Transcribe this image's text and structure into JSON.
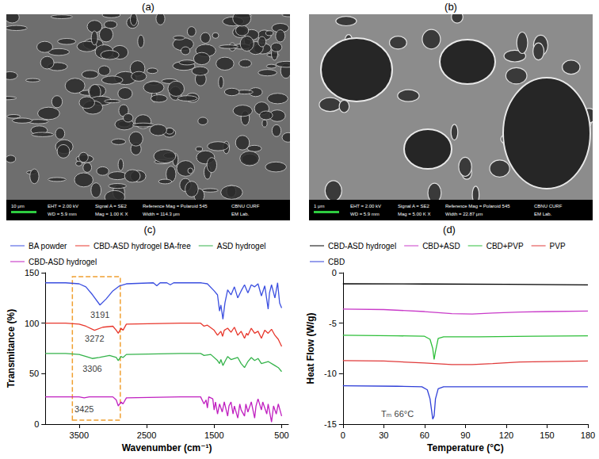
{
  "images": [
    {
      "panel_label": "(a)",
      "scale_bar": "10 μm",
      "info": [
        [
          "EHT = 2.00 kV",
          "WD = 5.9 mm"
        ],
        [
          "Signal A = SE2",
          "Mag = 1.00 K X"
        ],
        [
          "Reference Mag = Polaroid 545",
          "Width = 114.3 μm"
        ],
        [
          "CBNU CURF",
          "EM Lab."
        ]
      ]
    },
    {
      "panel_label": "(b)",
      "scale_bar": "1 μm",
      "info": [
        [
          "EHT = 2.00 kV",
          "WD = 5.9 mm"
        ],
        [
          "Signal A = SE2",
          "Mag = 5.00 K X"
        ],
        [
          "Reference Mag = Polaroid 545",
          "Width = 22.87 μm"
        ],
        [
          "CBNU CURF",
          "EM Lab."
        ]
      ]
    }
  ],
  "chart_data": [
    {
      "panel_label": "(c)",
      "type": "line",
      "x_label": "Wavenumber (cm⁻¹)",
      "y_label": "Transmitance (%)",
      "xlim": [
        4000,
        400
      ],
      "ylim": [
        0,
        150
      ],
      "xticks": [
        3500,
        2500,
        1500,
        500
      ],
      "yticks": [
        0,
        50,
        100,
        150
      ],
      "grid": false,
      "legend": "top",
      "series": [
        {
          "name": "BA powder",
          "color": "#3b4fe0",
          "x": [
            4000,
            3700,
            3500,
            3400,
            3300,
            3191,
            3100,
            3000,
            2900,
            2800,
            2400,
            2350,
            2300,
            2200,
            2150,
            2100,
            1800,
            1700,
            1600,
            1500,
            1450,
            1420,
            1400,
            1370,
            1340,
            1300,
            1250,
            1200,
            1150,
            1100,
            1050,
            1000,
            950,
            900,
            850,
            800,
            750,
            700,
            680,
            650,
            600,
            560,
            530,
            500
          ],
          "values": [
            140,
            140,
            139,
            136,
            128,
            118,
            124,
            132,
            137,
            139,
            140,
            137,
            140,
            140,
            138,
            140,
            140,
            140,
            139,
            132,
            128,
            112,
            118,
            104,
            120,
            133,
            128,
            136,
            125,
            132,
            138,
            130,
            138,
            136,
            139,
            127,
            137,
            114,
            130,
            138,
            125,
            140,
            120,
            115
          ]
        },
        {
          "name": "CBD-ASD hydrogel BA-free",
          "color": "#e8372c",
          "x": [
            4000,
            3700,
            3500,
            3400,
            3272,
            3150,
            3000,
            2950,
            2920,
            2880,
            2850,
            2800,
            2000,
            1700,
            1650,
            1600,
            1500,
            1450,
            1400,
            1375,
            1350,
            1300,
            1250,
            1200,
            1150,
            1100,
            1050,
            1020,
            1000,
            950,
            900,
            850,
            800,
            750,
            700,
            650,
            600,
            550,
            500
          ],
          "values": [
            100,
            100,
            99,
            97,
            93,
            96,
            97,
            93,
            90,
            95,
            93,
            99,
            100,
            100,
            97,
            98,
            93,
            88,
            92,
            87,
            93,
            95,
            91,
            96,
            88,
            92,
            85,
            90,
            88,
            95,
            90,
            92,
            85,
            93,
            90,
            94,
            88,
            84,
            77
          ]
        },
        {
          "name": "ASD hydrogel",
          "color": "#34b34a",
          "x": [
            4000,
            3700,
            3500,
            3400,
            3306,
            3200,
            3050,
            2950,
            2920,
            2880,
            2850,
            2800,
            2000,
            1700,
            1650,
            1550,
            1450,
            1420,
            1400,
            1370,
            1340,
            1300,
            1250,
            1150,
            1100,
            1050,
            1000,
            950,
            900,
            850,
            800,
            700,
            600,
            550,
            500
          ],
          "values": [
            70,
            70,
            69,
            67,
            65,
            66,
            68,
            66,
            63,
            67,
            66,
            69,
            70,
            70,
            68,
            69,
            63,
            60,
            64,
            58,
            62,
            67,
            64,
            66,
            60,
            56,
            62,
            66,
            63,
            65,
            60,
            62,
            58,
            56,
            52
          ]
        },
        {
          "name": "CBD-ASD hydrogel",
          "color": "#c020c0",
          "x": [
            4000,
            3600,
            3500,
            3425,
            3350,
            3000,
            2950,
            2920,
            2880,
            2850,
            2800,
            2000,
            1700,
            1650,
            1620,
            1600,
            1580,
            1520,
            1500,
            1480,
            1450,
            1420,
            1380,
            1350,
            1300,
            1280,
            1250,
            1220,
            1200,
            1150,
            1120,
            1100,
            1050,
            1030,
            1000,
            950,
            900,
            880,
            850,
            800,
            780,
            720,
            700,
            650,
            620,
            580,
            550,
            500
          ],
          "values": [
            27,
            27,
            27,
            26,
            27,
            27,
            24,
            18,
            22,
            20,
            26,
            27,
            27,
            20,
            24,
            16,
            27,
            25,
            14,
            22,
            10,
            20,
            12,
            22,
            8,
            18,
            22,
            10,
            18,
            6,
            20,
            14,
            8,
            20,
            12,
            22,
            6,
            18,
            25,
            14,
            22,
            10,
            20,
            2,
            18,
            10,
            20,
            8
          ]
        }
      ],
      "annotations": [
        {
          "text": "3191",
          "x": 3191,
          "y": 108
        },
        {
          "text": "3272",
          "x": 3272,
          "y": 85
        },
        {
          "text": "3306",
          "x": 3306,
          "y": 55
        },
        {
          "text": "3425",
          "x": 3425,
          "y": 15
        }
      ],
      "highlight_region": {
        "xlim": [
          3600,
          2890
        ],
        "ylim": [
          4,
          146
        ]
      }
    },
    {
      "panel_label": "(d)",
      "type": "line",
      "x_label": "Temperature (°C)",
      "y_label": "Heat Flow (W/g)",
      "xlim": [
        0,
        180
      ],
      "ylim": [
        -15,
        0
      ],
      "xticks": [
        0,
        30,
        60,
        90,
        120,
        150,
        180
      ],
      "yticks": [
        -15,
        -10,
        -5,
        0
      ],
      "grid": false,
      "legend": "top",
      "series": [
        {
          "name": "CBD-ASD hydrogel",
          "color": "#000000",
          "x": [
            0,
            60,
            120,
            180
          ],
          "values": [
            -1.1,
            -1.12,
            -1.15,
            -1.2
          ]
        },
        {
          "name": "CBD+ASD",
          "color": "#c93bc9",
          "x": [
            0,
            30,
            60,
            80,
            95,
            110,
            130,
            150,
            180
          ],
          "values": [
            -3.6,
            -3.65,
            -3.85,
            -4.05,
            -4.1,
            -4.0,
            -3.9,
            -3.85,
            -3.8
          ]
        },
        {
          "name": "CBD+PVP",
          "color": "#2ebf3a",
          "x": [
            0,
            40,
            60,
            64,
            66,
            67,
            68,
            70,
            74,
            100,
            140,
            180
          ],
          "values": [
            -6.2,
            -6.25,
            -6.3,
            -6.6,
            -7.5,
            -8.6,
            -7.8,
            -6.5,
            -6.35,
            -6.35,
            -6.3,
            -6.25
          ]
        },
        {
          "name": "PVP",
          "color": "#e03a3a",
          "x": [
            0,
            30,
            60,
            80,
            95,
            110,
            130,
            150,
            180
          ],
          "values": [
            -8.7,
            -8.75,
            -8.95,
            -9.1,
            -9.1,
            -9.0,
            -8.85,
            -8.8,
            -8.75
          ]
        },
        {
          "name": "CBD",
          "color": "#2f3fd8",
          "x": [
            0,
            40,
            58,
            62,
            64,
            66,
            67,
            68,
            70,
            74,
            120,
            180
          ],
          "values": [
            -11.2,
            -11.25,
            -11.3,
            -11.6,
            -12.5,
            -14.5,
            -14.2,
            -12.5,
            -11.5,
            -11.3,
            -11.3,
            -11.3
          ]
        }
      ],
      "annotations": [
        {
          "text": "Tₘ 66°C",
          "x": 40,
          "y": -14
        }
      ]
    }
  ]
}
